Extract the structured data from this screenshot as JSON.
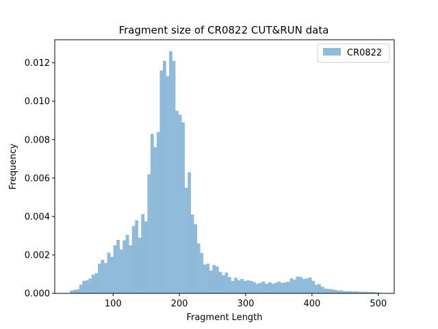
{
  "chart_data": {
    "type": "bar",
    "title": "Fragment size of CR0822 CUT&RUN data",
    "xlabel": "Fragment Length",
    "ylabel": "Frequency",
    "xlim": [
      12,
      524
    ],
    "ylim": [
      0,
      0.0132
    ],
    "xticks": [
      100,
      200,
      300,
      400,
      500
    ],
    "xtick_labels": [
      "100",
      "200",
      "300",
      "400",
      "500"
    ],
    "yticks": [
      0,
      0.002,
      0.004,
      0.006,
      0.008,
      0.01,
      0.012
    ],
    "ytick_labels": [
      "0.000",
      "0.002",
      "0.004",
      "0.006",
      "0.008",
      "0.010",
      "0.012"
    ],
    "grid": false,
    "legend": {
      "position": "top-right",
      "entries": [
        "CR0822"
      ]
    },
    "bar_color": "#8fbad9",
    "series": [
      {
        "name": "CR0822",
        "bin_start": 35,
        "bin_width": 4.67,
        "values": [
          0.00015,
          0.00018,
          0.00022,
          0.00045,
          0.00065,
          0.00068,
          0.00078,
          0.00098,
          0.00105,
          0.00155,
          0.00175,
          0.00158,
          0.00212,
          0.0019,
          0.0025,
          0.00278,
          0.00228,
          0.00276,
          0.00305,
          0.0025,
          0.0035,
          0.0038,
          0.0029,
          0.00412,
          0.00375,
          0.0062,
          0.0083,
          0.0076,
          0.0084,
          0.0116,
          0.0121,
          0.0113,
          0.0126,
          0.0121,
          0.0095,
          0.0093,
          0.0089,
          0.0055,
          0.0063,
          0.0041,
          0.0036,
          0.0026,
          0.0021,
          0.0015,
          0.00155,
          0.00118,
          0.00148,
          0.0014,
          0.00112,
          0.00095,
          0.00108,
          0.00085,
          0.00065,
          0.00082,
          0.00068,
          0.00075,
          0.00065,
          0.00068,
          0.00065,
          0.00058,
          0.0005,
          0.00055,
          0.00062,
          0.0005,
          0.00058,
          0.0005,
          0.00055,
          0.00062,
          0.00055,
          0.00058,
          0.0006,
          0.00078,
          0.00072,
          0.00088,
          0.00085,
          0.00075,
          0.00078,
          0.00082,
          0.00065,
          0.00045,
          0.00048,
          0.00035,
          0.00025,
          0.00023,
          0.00022,
          0.00018,
          0.00015,
          0.00016,
          0.00012,
          0.00011,
          0.00012,
          0.0001,
          0.00011,
          9e-05,
          8e-05,
          9e-05,
          7e-05,
          8e-05,
          6e-05,
          5e-05
        ]
      }
    ]
  }
}
